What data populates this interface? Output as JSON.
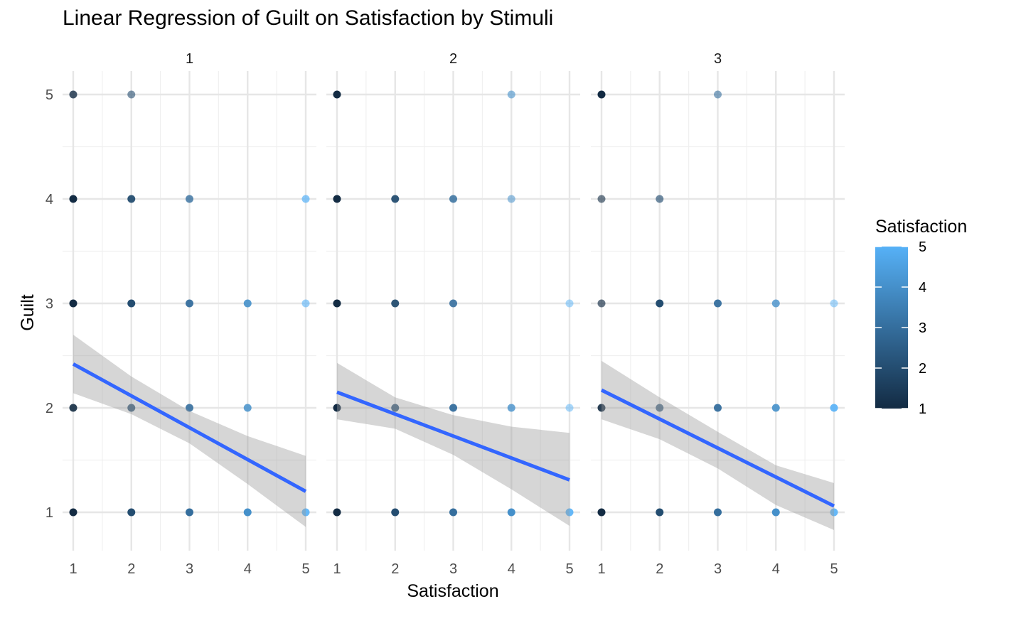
{
  "chart_data": {
    "type": "scatter",
    "title": "Linear Regression of Guilt on Satisfaction by Stimuli",
    "xlabel": "Satisfaction",
    "ylabel": "Guilt",
    "xlim": [
      0.8,
      5.2
    ],
    "ylim": [
      0.6,
      5.2
    ],
    "x_ticks": [
      "1",
      "2",
      "3",
      "4",
      "5"
    ],
    "y_ticks": [
      "1",
      "2",
      "3",
      "4",
      "5"
    ],
    "grid": true,
    "legend": {
      "title": "Satisfaction",
      "position": "right",
      "type": "colorbar",
      "range": [
        1,
        5
      ],
      "ticks": [
        "1",
        "2",
        "3",
        "4",
        "5"
      ],
      "color_low": "#132B43",
      "color_high": "#56B1F7"
    },
    "fit_color": "#3366FF",
    "band_color": "#999999",
    "panels": [
      {
        "facet": "1",
        "points": [
          {
            "x": 1,
            "y": 5,
            "alpha": 0.8
          },
          {
            "x": 2,
            "y": 5,
            "alpha": 0.6
          },
          {
            "x": 1,
            "y": 4,
            "alpha": 1.0
          },
          {
            "x": 2,
            "y": 4,
            "alpha": 0.95
          },
          {
            "x": 3,
            "y": 4,
            "alpha": 0.8
          },
          {
            "x": 5,
            "y": 4,
            "alpha": 0.7
          },
          {
            "x": 1,
            "y": 3,
            "alpha": 1.0
          },
          {
            "x": 2,
            "y": 3,
            "alpha": 1.0
          },
          {
            "x": 3,
            "y": 3,
            "alpha": 0.95
          },
          {
            "x": 4,
            "y": 3,
            "alpha": 0.9
          },
          {
            "x": 5,
            "y": 3,
            "alpha": 0.6
          },
          {
            "x": 1,
            "y": 2,
            "alpha": 0.9
          },
          {
            "x": 2,
            "y": 2,
            "alpha": 0.85
          },
          {
            "x": 3,
            "y": 2,
            "alpha": 0.9
          },
          {
            "x": 4,
            "y": 2,
            "alpha": 0.85
          },
          {
            "x": 1,
            "y": 1,
            "alpha": 1.0
          },
          {
            "x": 2,
            "y": 1,
            "alpha": 1.0
          },
          {
            "x": 3,
            "y": 1,
            "alpha": 1.0
          },
          {
            "x": 4,
            "y": 1,
            "alpha": 1.0
          },
          {
            "x": 5,
            "y": 1,
            "alpha": 0.9
          }
        ],
        "fit": {
          "x": [
            1,
            5
          ],
          "y": [
            2.42,
            1.2
          ]
        },
        "ci": {
          "x": [
            1,
            2,
            3,
            4,
            5
          ],
          "lower": [
            2.14,
            1.94,
            1.66,
            1.27,
            0.86
          ],
          "upper": [
            2.7,
            2.3,
            1.97,
            1.73,
            1.54
          ]
        }
      },
      {
        "facet": "2",
        "points": [
          {
            "x": 1,
            "y": 5,
            "alpha": 1.0
          },
          {
            "x": 4,
            "y": 5,
            "alpha": 0.6
          },
          {
            "x": 1,
            "y": 4,
            "alpha": 1.0
          },
          {
            "x": 2,
            "y": 4,
            "alpha": 0.95
          },
          {
            "x": 3,
            "y": 4,
            "alpha": 0.85
          },
          {
            "x": 4,
            "y": 4,
            "alpha": 0.55
          },
          {
            "x": 1,
            "y": 3,
            "alpha": 1.0
          },
          {
            "x": 2,
            "y": 3,
            "alpha": 0.95
          },
          {
            "x": 3,
            "y": 3,
            "alpha": 0.9
          },
          {
            "x": 5,
            "y": 3,
            "alpha": 0.5
          },
          {
            "x": 1,
            "y": 2,
            "alpha": 1.0
          },
          {
            "x": 2,
            "y": 2,
            "alpha": 0.85
          },
          {
            "x": 3,
            "y": 2,
            "alpha": 0.95
          },
          {
            "x": 4,
            "y": 2,
            "alpha": 0.8
          },
          {
            "x": 5,
            "y": 2,
            "alpha": 0.5
          },
          {
            "x": 1,
            "y": 1,
            "alpha": 1.0
          },
          {
            "x": 2,
            "y": 1,
            "alpha": 1.0
          },
          {
            "x": 3,
            "y": 1,
            "alpha": 1.0
          },
          {
            "x": 4,
            "y": 1,
            "alpha": 1.0
          },
          {
            "x": 5,
            "y": 1,
            "alpha": 0.9
          }
        ],
        "fit": {
          "x": [
            1,
            5
          ],
          "y": [
            2.15,
            1.31
          ]
        },
        "ci": {
          "x": [
            1,
            2,
            3,
            4,
            5
          ],
          "lower": [
            1.89,
            1.8,
            1.55,
            1.22,
            0.87
          ],
          "upper": [
            2.43,
            2.1,
            1.93,
            1.82,
            1.76
          ]
        }
      },
      {
        "facet": "3",
        "points": [
          {
            "x": 1,
            "y": 5,
            "alpha": 1.0
          },
          {
            "x": 3,
            "y": 5,
            "alpha": 0.6
          },
          {
            "x": 1,
            "y": 4,
            "alpha": 0.6
          },
          {
            "x": 2,
            "y": 4,
            "alpha": 0.65
          },
          {
            "x": 1,
            "y": 3,
            "alpha": 0.65
          },
          {
            "x": 2,
            "y": 3,
            "alpha": 1.0
          },
          {
            "x": 3,
            "y": 3,
            "alpha": 0.95
          },
          {
            "x": 4,
            "y": 3,
            "alpha": 0.8
          },
          {
            "x": 5,
            "y": 3,
            "alpha": 0.5
          },
          {
            "x": 1,
            "y": 2,
            "alpha": 0.9
          },
          {
            "x": 2,
            "y": 2,
            "alpha": 0.75
          },
          {
            "x": 3,
            "y": 2,
            "alpha": 0.95
          },
          {
            "x": 4,
            "y": 2,
            "alpha": 0.9
          },
          {
            "x": 5,
            "y": 2,
            "alpha": 0.9
          },
          {
            "x": 1,
            "y": 1,
            "alpha": 1.0
          },
          {
            "x": 2,
            "y": 1,
            "alpha": 1.0
          },
          {
            "x": 3,
            "y": 1,
            "alpha": 1.0
          },
          {
            "x": 4,
            "y": 1,
            "alpha": 1.0
          },
          {
            "x": 5,
            "y": 1,
            "alpha": 0.9
          }
        ],
        "fit": {
          "x": [
            1,
            5
          ],
          "y": [
            2.17,
            1.06
          ]
        },
        "ci": {
          "x": [
            1,
            2,
            3,
            4,
            5
          ],
          "lower": [
            1.89,
            1.7,
            1.42,
            1.07,
            0.83
          ],
          "upper": [
            2.45,
            2.1,
            1.77,
            1.45,
            1.28
          ]
        }
      }
    ]
  }
}
